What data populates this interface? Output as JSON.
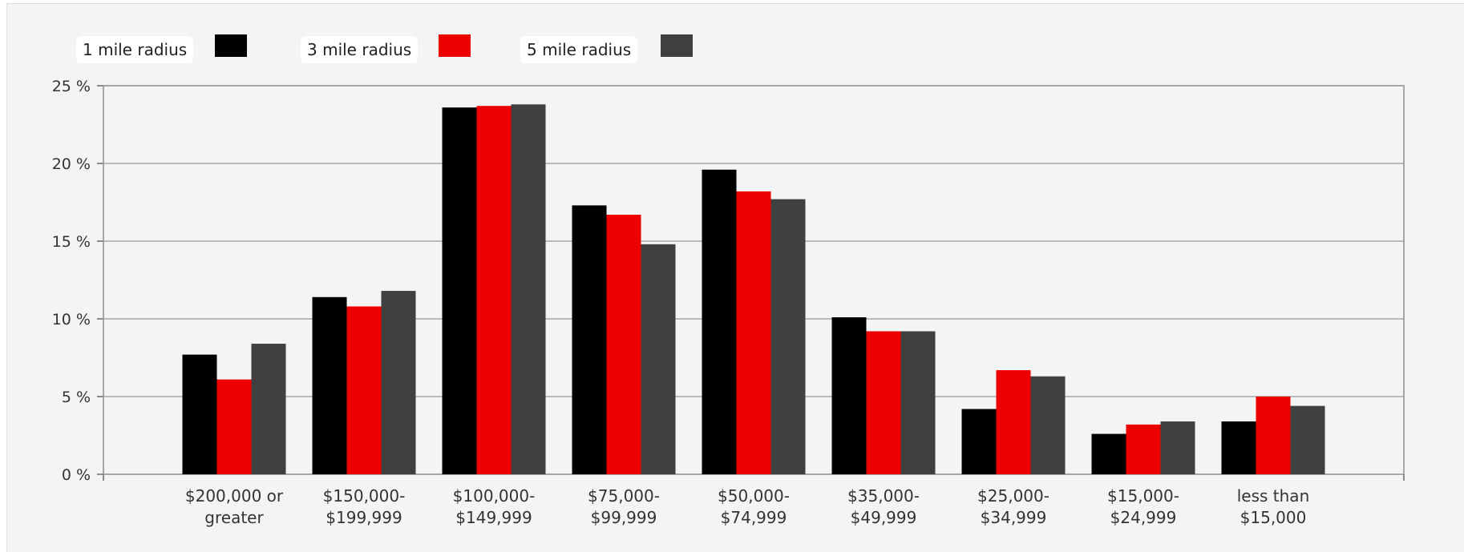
{
  "chart_data": {
    "type": "bar",
    "categories": [
      [
        "$200,000 or",
        "greater"
      ],
      [
        "$150,000-",
        "$199,999"
      ],
      [
        "$100,000-",
        "$149,999"
      ],
      [
        "$75,000-",
        "$99,999"
      ],
      [
        "$50,000-",
        "$74,999"
      ],
      [
        "$35,000-",
        "$49,999"
      ],
      [
        "$25,000-",
        "$34,999"
      ],
      [
        "$15,000-",
        "$24,999"
      ],
      [
        "less than",
        "$15,000"
      ]
    ],
    "series": [
      {
        "name": "1 mile radius",
        "color": "#000000",
        "values": [
          7.7,
          11.4,
          23.6,
          17.3,
          19.6,
          10.1,
          4.2,
          2.6,
          3.4
        ]
      },
      {
        "name": "3 mile radius",
        "color": "#ee0000",
        "values": [
          6.1,
          10.8,
          23.7,
          16.7,
          18.2,
          9.2,
          6.7,
          3.2,
          5.0
        ]
      },
      {
        "name": "5 mile radius",
        "color": "#404040",
        "values": [
          8.4,
          11.8,
          23.8,
          14.8,
          17.7,
          9.2,
          6.3,
          3.4,
          4.4
        ]
      }
    ],
    "y_ticks": [
      "0 %",
      "5 %",
      "10 %",
      "15 %",
      "20 %",
      "25 %"
    ],
    "ylim": [
      0,
      25
    ],
    "grid": true,
    "legend_position": "top-left",
    "xlabel": "",
    "ylabel": "",
    "title": ""
  }
}
